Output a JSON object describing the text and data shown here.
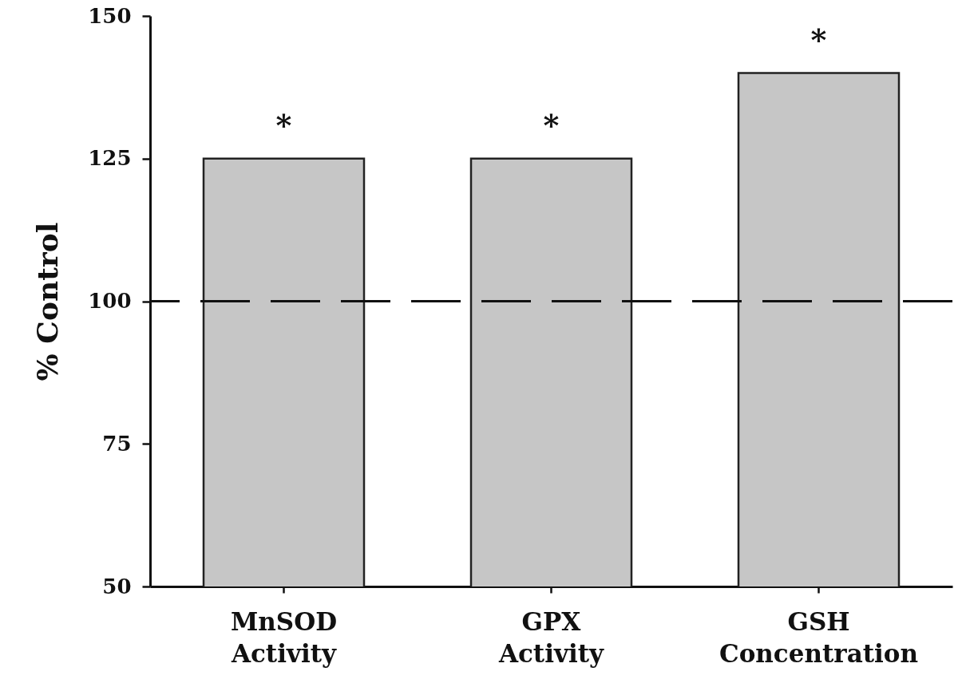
{
  "chart_data": {
    "type": "bar",
    "ylabel": "% Control",
    "categories": [
      "MnSOD Activity",
      "GPX Activity",
      "GSH Concentration"
    ],
    "values": [
      125,
      125,
      140
    ],
    "color": "#c6c6c6",
    "ylim": [
      50,
      150
    ],
    "yticks": [
      50,
      75,
      100,
      125,
      150
    ],
    "ref_lines": [
      {
        "axis": "y",
        "value": 100,
        "color": "#111111",
        "line_style": "dashed"
      }
    ],
    "annotations": [
      {
        "text": "*",
        "x": "MnSOD Activity",
        "y": 125
      },
      {
        "text": "*",
        "x": "GPX Activity",
        "y": 125
      },
      {
        "text": "*",
        "x": "GSH Concentration",
        "y": 140
      }
    ]
  }
}
